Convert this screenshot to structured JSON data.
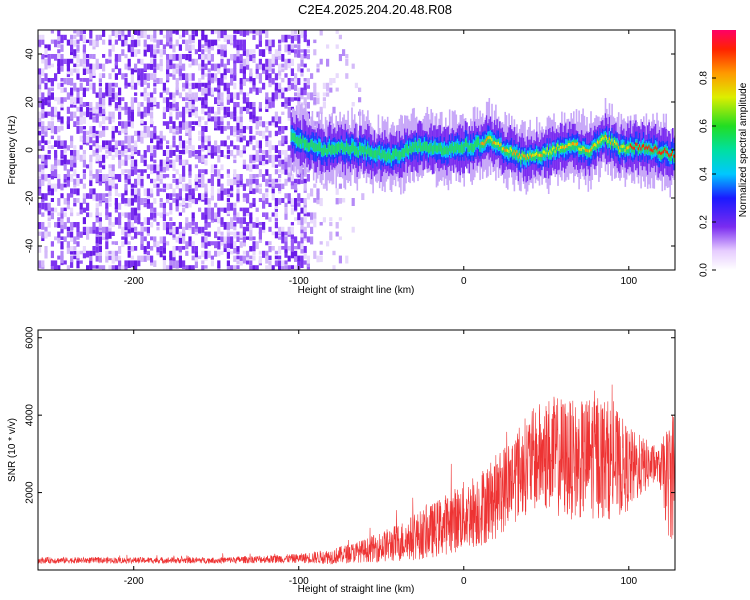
{
  "title": "C2E4.2025.204.20.48.R08",
  "chart_data": [
    {
      "type": "heatmap",
      "xlabel": "Height of straight line (km)",
      "ylabel": "Frequency (Hz)",
      "xlim": [
        -258,
        128
      ],
      "ylim": [
        -50,
        50
      ],
      "x_ticks": [
        -200,
        -100,
        0,
        100
      ],
      "y_ticks": [
        -40,
        -20,
        0,
        20,
        40
      ],
      "x_tick_labels": [
        "-200",
        "-100",
        "0",
        "100"
      ],
      "y_tick_labels": [
        "-40",
        "-20",
        "0",
        "20",
        "40"
      ],
      "noise_region_end_x": -95,
      "signal_start_x": -105,
      "signal_track": {
        "x": [
          -105,
          -95,
          -85,
          -75,
          -65,
          -55,
          -45,
          -35,
          -25,
          -15,
          -5,
          5,
          15,
          25,
          35,
          45,
          55,
          65,
          75,
          85,
          95,
          105,
          115,
          125
        ],
        "y": [
          6,
          2,
          0,
          1,
          0,
          -1,
          -3,
          0,
          2,
          0,
          1,
          2,
          4,
          0,
          -3,
          -2,
          0,
          3,
          -2,
          5,
          0,
          1,
          0,
          -2
        ]
      },
      "colorbar": {
        "label": "Normalized spectral amplitude",
        "range": [
          0,
          1
        ],
        "ticks": [
          0.0,
          0.2,
          0.4,
          0.6,
          0.8
        ],
        "tick_labels": [
          "0.0",
          "0.2",
          "0.4",
          "0.6",
          "0.8"
        ]
      }
    },
    {
      "type": "line",
      "xlabel": "Height of straight line (km)",
      "ylabel": "SNR (10 * v/v)",
      "xlim": [
        -258,
        128
      ],
      "ylim": [
        0,
        6200
      ],
      "x_ticks": [
        -200,
        -100,
        0,
        100
      ],
      "y_ticks": [
        2000,
        4000,
        6000
      ],
      "x_tick_labels": [
        "-200",
        "-100",
        "0",
        "100"
      ],
      "y_tick_labels": [
        "2000",
        "4000",
        "6000"
      ],
      "color": "#ee3333",
      "envelope": {
        "x": [
          -258,
          -200,
          -150,
          -100,
          -80,
          -60,
          -40,
          -20,
          0,
          10,
          20,
          30,
          40,
          50,
          60,
          70,
          80,
          90,
          100,
          110,
          118,
          124,
          128
        ],
        "center": [
          250,
          250,
          250,
          300,
          350,
          500,
          700,
          1000,
          1400,
          1600,
          1900,
          2400,
          2800,
          3000,
          2900,
          2800,
          3000,
          2800,
          2600,
          2700,
          2700,
          2300,
          2600
        ],
        "spread": [
          80,
          80,
          80,
          120,
          200,
          300,
          500,
          700,
          900,
          1000,
          1100,
          1200,
          1300,
          1500,
          1600,
          1500,
          1700,
          1500,
          1100,
          700,
          400,
          1500,
          1800
        ]
      }
    }
  ]
}
